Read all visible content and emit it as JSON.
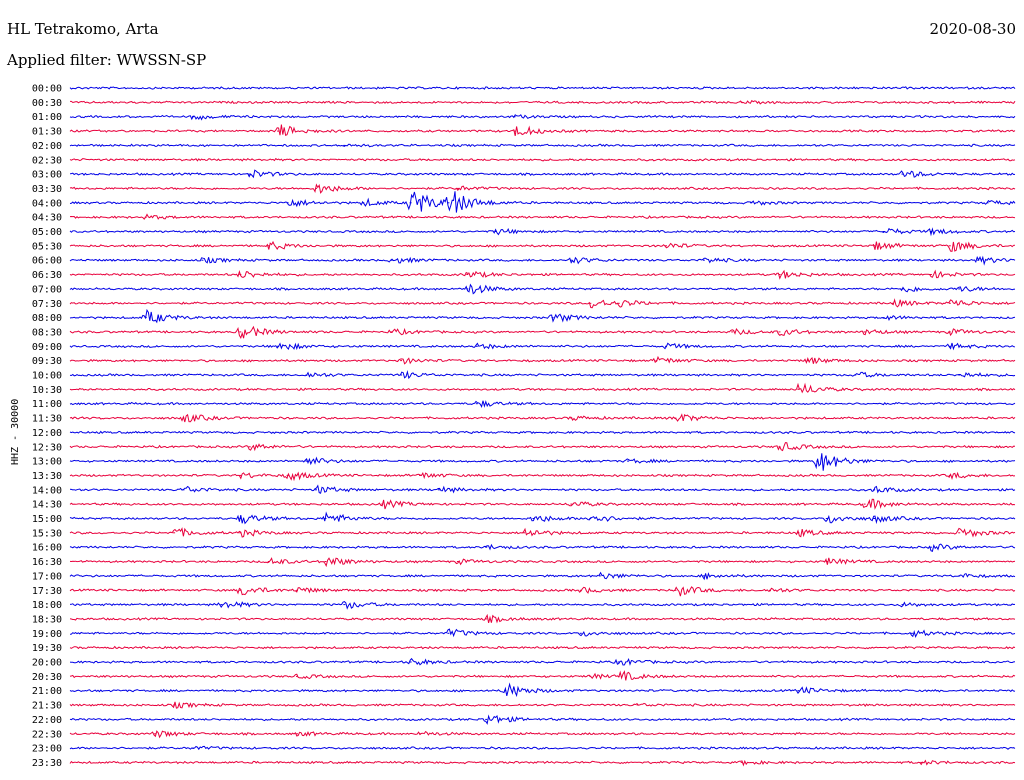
{
  "header": {
    "station": "HL Tetrakomo, Arta",
    "filter": "Applied filter: WWSSN-SP",
    "date": "2020-08-30"
  },
  "channel_label": "HHZ - 30000",
  "colors": {
    "trace_a": "#0000e6",
    "trace_b": "#e8003c",
    "background": "#ffffff",
    "text": "#000000"
  },
  "chart_data": {
    "type": "line",
    "subtype": "helicorder",
    "title": "",
    "ylabel": "HHZ - 30000",
    "xlabel": "",
    "rows": [
      {
        "time": "00:00",
        "events": []
      },
      {
        "time": "00:30",
        "events": [
          {
            "x": 0.71,
            "amp": 0.15
          }
        ]
      },
      {
        "time": "01:00",
        "events": [
          {
            "x": 0.13,
            "amp": 0.4
          },
          {
            "x": 0.47,
            "amp": 0.2
          }
        ]
      },
      {
        "time": "01:30",
        "events": [
          {
            "x": 0.22,
            "amp": 1.0
          },
          {
            "x": 0.47,
            "amp": 0.9
          }
        ]
      },
      {
        "time": "02:00",
        "events": [
          {
            "x": 0.29,
            "amp": 0.15
          }
        ]
      },
      {
        "time": "02:30",
        "events": []
      },
      {
        "time": "03:00",
        "events": [
          {
            "x": 0.19,
            "amp": 0.6
          },
          {
            "x": 0.88,
            "amp": 0.6
          }
        ]
      },
      {
        "time": "03:30",
        "events": [
          {
            "x": 0.26,
            "amp": 0.8
          },
          {
            "x": 0.41,
            "amp": 0.3
          }
        ]
      },
      {
        "time": "04:00",
        "events": [
          {
            "x": 0.23,
            "amp": 0.6
          },
          {
            "x": 0.31,
            "amp": 0.5
          },
          {
            "x": 0.36,
            "amp": 2.2
          },
          {
            "x": 0.4,
            "amp": 2.0
          },
          {
            "x": 0.72,
            "amp": 0.3
          },
          {
            "x": 0.97,
            "amp": 0.3
          }
        ]
      },
      {
        "time": "04:30",
        "events": [
          {
            "x": 0.08,
            "amp": 0.3
          }
        ]
      },
      {
        "time": "05:00",
        "events": [
          {
            "x": 0.45,
            "amp": 0.4
          },
          {
            "x": 0.86,
            "amp": 0.5
          },
          {
            "x": 0.91,
            "amp": 0.4
          }
        ]
      },
      {
        "time": "05:30",
        "events": [
          {
            "x": 0.21,
            "amp": 0.6
          },
          {
            "x": 0.63,
            "amp": 0.4
          },
          {
            "x": 0.85,
            "amp": 0.6
          },
          {
            "x": 0.93,
            "amp": 0.9
          }
        ]
      },
      {
        "time": "06:00",
        "events": [
          {
            "x": 0.14,
            "amp": 0.4
          },
          {
            "x": 0.34,
            "amp": 0.5
          },
          {
            "x": 0.53,
            "amp": 0.5
          },
          {
            "x": 0.67,
            "amp": 0.4
          },
          {
            "x": 0.96,
            "amp": 0.5
          }
        ]
      },
      {
        "time": "06:30",
        "events": [
          {
            "x": 0.18,
            "amp": 0.6
          },
          {
            "x": 0.42,
            "amp": 0.5
          },
          {
            "x": 0.75,
            "amp": 0.6
          },
          {
            "x": 0.91,
            "amp": 0.5
          }
        ]
      },
      {
        "time": "07:00",
        "events": [
          {
            "x": 0.42,
            "amp": 0.9
          },
          {
            "x": 0.88,
            "amp": 0.5
          },
          {
            "x": 0.94,
            "amp": 0.4
          }
        ]
      },
      {
        "time": "07:30",
        "events": [
          {
            "x": 0.55,
            "amp": 0.8
          },
          {
            "x": 0.58,
            "amp": 0.4
          },
          {
            "x": 0.87,
            "amp": 0.5
          },
          {
            "x": 0.93,
            "amp": 0.6
          }
        ]
      },
      {
        "time": "08:00",
        "events": [
          {
            "x": 0.08,
            "amp": 1.1
          },
          {
            "x": 0.51,
            "amp": 0.7
          },
          {
            "x": 0.86,
            "amp": 0.3
          }
        ]
      },
      {
        "time": "08:30",
        "events": [
          {
            "x": 0.18,
            "amp": 1.2
          },
          {
            "x": 0.34,
            "amp": 0.4
          },
          {
            "x": 0.7,
            "amp": 0.4
          },
          {
            "x": 0.75,
            "amp": 0.5
          },
          {
            "x": 0.84,
            "amp": 0.4
          },
          {
            "x": 0.93,
            "amp": 0.4
          }
        ]
      },
      {
        "time": "09:00",
        "events": [
          {
            "x": 0.22,
            "amp": 0.6
          },
          {
            "x": 0.43,
            "amp": 0.4
          },
          {
            "x": 0.63,
            "amp": 0.4
          },
          {
            "x": 0.93,
            "amp": 0.4
          }
        ]
      },
      {
        "time": "09:30",
        "events": [
          {
            "x": 0.35,
            "amp": 0.4
          },
          {
            "x": 0.62,
            "amp": 0.5
          },
          {
            "x": 0.78,
            "amp": 0.5
          }
        ]
      },
      {
        "time": "10:00",
        "events": [
          {
            "x": 0.25,
            "amp": 0.4
          },
          {
            "x": 0.35,
            "amp": 0.5
          },
          {
            "x": 0.83,
            "amp": 0.4
          },
          {
            "x": 0.94,
            "amp": 0.4
          }
        ]
      },
      {
        "time": "10:30",
        "events": [
          {
            "x": 0.77,
            "amp": 0.9
          }
        ]
      },
      {
        "time": "11:00",
        "events": [
          {
            "x": 0.43,
            "amp": 0.5
          }
        ]
      },
      {
        "time": "11:30",
        "events": [
          {
            "x": 0.12,
            "amp": 0.7
          },
          {
            "x": 0.53,
            "amp": 0.3
          },
          {
            "x": 0.64,
            "amp": 0.7
          }
        ]
      },
      {
        "time": "12:00",
        "events": []
      },
      {
        "time": "12:30",
        "events": [
          {
            "x": 0.19,
            "amp": 0.5
          },
          {
            "x": 0.75,
            "amp": 0.7
          }
        ]
      },
      {
        "time": "13:00",
        "events": [
          {
            "x": 0.25,
            "amp": 0.6
          },
          {
            "x": 0.59,
            "amp": 0.3
          },
          {
            "x": 0.79,
            "amp": 1.8
          }
        ]
      },
      {
        "time": "13:30",
        "events": [
          {
            "x": 0.18,
            "amp": 0.4
          },
          {
            "x": 0.23,
            "amp": 0.7
          },
          {
            "x": 0.37,
            "amp": 0.4
          },
          {
            "x": 0.93,
            "amp": 0.4
          }
        ]
      },
      {
        "time": "14:00",
        "events": [
          {
            "x": 0.12,
            "amp": 0.5
          },
          {
            "x": 0.26,
            "amp": 0.6
          },
          {
            "x": 0.39,
            "amp": 0.4
          },
          {
            "x": 0.85,
            "amp": 0.5
          }
        ]
      },
      {
        "time": "14:30",
        "events": [
          {
            "x": 0.33,
            "amp": 0.6
          },
          {
            "x": 0.53,
            "amp": 0.4
          },
          {
            "x": 0.84,
            "amp": 0.9
          }
        ]
      },
      {
        "time": "15:00",
        "events": [
          {
            "x": 0.18,
            "amp": 0.8
          },
          {
            "x": 0.27,
            "amp": 0.9
          },
          {
            "x": 0.49,
            "amp": 0.6
          },
          {
            "x": 0.55,
            "amp": 0.7
          },
          {
            "x": 0.8,
            "amp": 0.7
          },
          {
            "x": 0.85,
            "amp": 0.5
          }
        ]
      },
      {
        "time": "15:30",
        "events": [
          {
            "x": 0.11,
            "amp": 0.7
          },
          {
            "x": 0.18,
            "amp": 0.5
          },
          {
            "x": 0.48,
            "amp": 0.7
          },
          {
            "x": 0.77,
            "amp": 0.5
          },
          {
            "x": 0.94,
            "amp": 0.8
          }
        ]
      },
      {
        "time": "16:00",
        "events": [
          {
            "x": 0.44,
            "amp": 0.3
          },
          {
            "x": 0.91,
            "amp": 0.5
          }
        ]
      },
      {
        "time": "16:30",
        "events": [
          {
            "x": 0.21,
            "amp": 0.5
          },
          {
            "x": 0.27,
            "amp": 0.8
          },
          {
            "x": 0.41,
            "amp": 0.3
          },
          {
            "x": 0.8,
            "amp": 0.5
          }
        ]
      },
      {
        "time": "17:00",
        "events": [
          {
            "x": 0.56,
            "amp": 0.5
          },
          {
            "x": 0.67,
            "amp": 0.4
          },
          {
            "x": 0.94,
            "amp": 0.3
          }
        ]
      },
      {
        "time": "17:30",
        "events": [
          {
            "x": 0.18,
            "amp": 0.8
          },
          {
            "x": 0.24,
            "amp": 0.4
          },
          {
            "x": 0.54,
            "amp": 0.4
          },
          {
            "x": 0.64,
            "amp": 0.9
          },
          {
            "x": 0.74,
            "amp": 0.3
          }
        ]
      },
      {
        "time": "18:00",
        "events": [
          {
            "x": 0.16,
            "amp": 0.6
          },
          {
            "x": 0.29,
            "amp": 0.6
          },
          {
            "x": 0.88,
            "amp": 0.3
          }
        ]
      },
      {
        "time": "18:30",
        "events": [
          {
            "x": 0.44,
            "amp": 0.5
          }
        ]
      },
      {
        "time": "19:00",
        "events": [
          {
            "x": 0.4,
            "amp": 0.6
          },
          {
            "x": 0.54,
            "amp": 0.4
          },
          {
            "x": 0.89,
            "amp": 0.5
          }
        ]
      },
      {
        "time": "19:30",
        "events": []
      },
      {
        "time": "20:00",
        "events": [
          {
            "x": 0.36,
            "amp": 0.5
          },
          {
            "x": 0.58,
            "amp": 0.5
          }
        ]
      },
      {
        "time": "20:30",
        "events": [
          {
            "x": 0.24,
            "amp": 0.3
          },
          {
            "x": 0.55,
            "amp": 0.3
          },
          {
            "x": 0.58,
            "amp": 0.7
          }
        ]
      },
      {
        "time": "21:00",
        "events": [
          {
            "x": 0.46,
            "amp": 1.1
          },
          {
            "x": 0.77,
            "amp": 0.5
          }
        ]
      },
      {
        "time": "21:30",
        "events": [
          {
            "x": 0.11,
            "amp": 0.4
          },
          {
            "x": 0.6,
            "amp": 0.2
          }
        ]
      },
      {
        "time": "22:00",
        "events": [
          {
            "x": 0.44,
            "amp": 0.8
          }
        ]
      },
      {
        "time": "22:30",
        "events": [
          {
            "x": 0.09,
            "amp": 0.5
          },
          {
            "x": 0.24,
            "amp": 0.3
          },
          {
            "x": 0.37,
            "amp": 0.3
          }
        ]
      },
      {
        "time": "23:00",
        "events": [
          {
            "x": 0.13,
            "amp": 0.2
          }
        ]
      },
      {
        "time": "23:30",
        "events": [
          {
            "x": 0.71,
            "amp": 0.3
          },
          {
            "x": 0.9,
            "amp": 0.3
          }
        ]
      }
    ]
  }
}
